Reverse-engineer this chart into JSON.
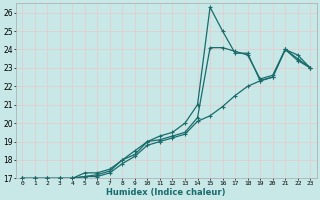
{
  "xlabel": "Humidex (Indice chaleur)",
  "bg_color": "#c8e8e8",
  "grid_color": "#d4eeee",
  "line_color": "#1a6b6b",
  "marker_color": "#1a6b6b",
  "xlim": [
    -0.5,
    23.5
  ],
  "ylim": [
    17,
    26.5
  ],
  "xticks": [
    0,
    1,
    2,
    3,
    4,
    5,
    6,
    7,
    8,
    9,
    10,
    11,
    12,
    13,
    14,
    15,
    16,
    17,
    18,
    19,
    20,
    21,
    22,
    23
  ],
  "yticks": [
    17,
    18,
    19,
    20,
    21,
    22,
    23,
    24,
    25,
    26
  ],
  "series": [
    {
      "x": [
        0,
        1,
        2,
        3,
        4,
        5,
        6,
        7,
        8,
        9,
        10,
        11,
        12,
        13,
        14,
        15,
        16,
        17,
        18,
        19,
        20,
        21,
        22,
        23
      ],
      "y": [
        17,
        17,
        17,
        17,
        17,
        17.3,
        17.3,
        17.5,
        18,
        18.5,
        19,
        19.3,
        19.5,
        20,
        21,
        26.3,
        25,
        23.8,
        23.8,
        22.3,
        22.5,
        24,
        23.7,
        23
      ]
    },
    {
      "x": [
        0,
        1,
        2,
        3,
        4,
        5,
        6,
        7,
        8,
        9,
        10,
        11,
        12,
        13,
        14,
        15,
        16,
        17,
        18,
        19,
        20,
        21,
        22,
        23
      ],
      "y": [
        17,
        17,
        17,
        17,
        17,
        17.1,
        17.2,
        17.4,
        18,
        18.3,
        19,
        19.1,
        19.3,
        19.5,
        20.3,
        24.1,
        24.1,
        23.9,
        23.7,
        22.4,
        22.6,
        24,
        23.5,
        23
      ]
    },
    {
      "x": [
        0,
        1,
        2,
        3,
        4,
        5,
        6,
        7,
        8,
        9,
        10,
        11,
        12,
        13,
        14,
        15,
        16,
        17,
        18,
        19,
        20,
        21,
        22,
        23
      ],
      "y": [
        17,
        17,
        17,
        17,
        17,
        17.1,
        17.1,
        17.3,
        17.8,
        18.2,
        18.8,
        19.0,
        19.2,
        19.4,
        20.1,
        20.4,
        20.9,
        21.5,
        22.0,
        22.3,
        22.5,
        24.0,
        23.4,
        23.0
      ]
    }
  ]
}
